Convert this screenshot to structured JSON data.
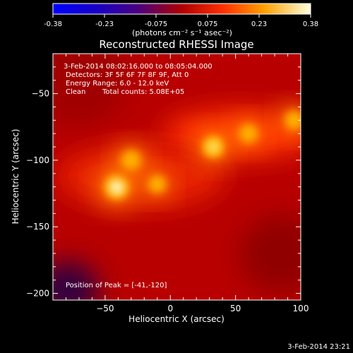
{
  "colorbar": {
    "ticks": [
      "-0.38",
      "-0.23",
      "-0.075",
      "0.075",
      "0.23",
      "0.38"
    ],
    "unit_label": "(photons cm⁻² s⁻¹ asec⁻²)",
    "range": [
      -0.38,
      0.38
    ]
  },
  "chart_data": {
    "type": "heatmap",
    "title": "Reconstructed RHESSI Image",
    "xlabel": "Heliocentric X (arcsec)",
    "ylabel": "Heliocentric Y (arcsec)",
    "xlim": [
      -90,
      100
    ],
    "ylim": [
      -205,
      -20
    ],
    "x_ticks": [
      -50,
      0,
      50,
      100
    ],
    "y_ticks": [
      -50,
      -100,
      -150,
      -200
    ],
    "peaks": [
      {
        "x": -41,
        "y": -120,
        "intensity": 0.38
      },
      {
        "x": -30,
        "y": -100,
        "intensity": 0.3
      },
      {
        "x": -10,
        "y": -118,
        "intensity": 0.27
      },
      {
        "x": 33,
        "y": -90,
        "intensity": 0.33
      },
      {
        "x": 60,
        "y": -80,
        "intensity": 0.28
      },
      {
        "x": 95,
        "y": -70,
        "intensity": 0.29
      }
    ],
    "annotations": {
      "time_range": "3-Feb-2014 08:02:16.000 to 08:05:04.000",
      "detectors": "Detectors: 3F 5F 6F 7F 8F 9F, Att 0",
      "energy": "Energy Range: 6.0 - 12.0 keV",
      "clean": "Clean",
      "counts": "Total counts: 5.08E+05",
      "peak_position": "Position of Peak = [-41,-120]"
    }
  },
  "footer": {
    "timestamp": "3-Feb-2014 23:21"
  }
}
